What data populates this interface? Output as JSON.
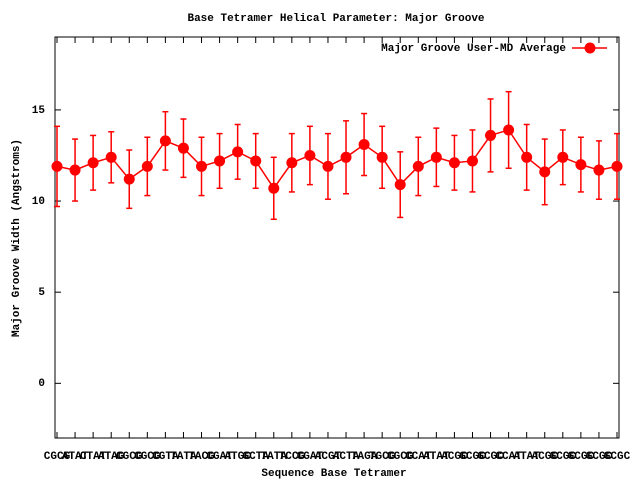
{
  "chart_data": {
    "type": "line",
    "title": "Base Tetramer Helical Parameter: Major Groove",
    "x_label": "Sequence Base Tetramer",
    "y_label": "Major Groove Width (Angstroms)",
    "categories": [
      "CGCG",
      "ATAT",
      "CTAT",
      "ATAG",
      "CGCG",
      "CGCG",
      "CGTA",
      "TATA",
      "TACG",
      "CGAT",
      "ATGC",
      "GCTA",
      "TATA",
      "TCCG",
      "CGAT",
      "ACGT",
      "ACTA",
      "TAGA",
      "TGCG",
      "CGCG",
      "CCAT",
      "ATAT",
      "ACGC",
      "GCGC",
      "GCGC",
      "CCAT",
      "ATAT",
      "ACGC",
      "GCGC",
      "GCGC",
      "GCGC",
      "GCGC"
    ],
    "series": [
      {
        "name": "Major Groove User-MD Average",
        "color": "#ff0000",
        "values": [
          11.9,
          11.7,
          12.1,
          12.4,
          11.2,
          11.9,
          13.3,
          12.9,
          11.9,
          12.2,
          12.7,
          12.2,
          10.7,
          12.1,
          12.5,
          11.9,
          12.4,
          13.1,
          12.4,
          10.9,
          11.9,
          12.4,
          12.1,
          12.2,
          13.6,
          13.9,
          12.4,
          11.6,
          12.4,
          12.0,
          11.7,
          11.9
        ],
        "errors": [
          2.2,
          1.7,
          1.5,
          1.4,
          1.6,
          1.6,
          1.6,
          1.6,
          1.6,
          1.5,
          1.5,
          1.5,
          1.7,
          1.6,
          1.6,
          1.8,
          2.0,
          1.7,
          1.7,
          1.8,
          1.6,
          1.6,
          1.5,
          1.7,
          2.0,
          2.1,
          1.8,
          1.8,
          1.5,
          1.5,
          1.6,
          1.8
        ]
      }
    ],
    "ylim": [
      -3,
      19
    ],
    "yticks": [
      0,
      5,
      10,
      15
    ],
    "legend": "top-right",
    "grid": false
  }
}
